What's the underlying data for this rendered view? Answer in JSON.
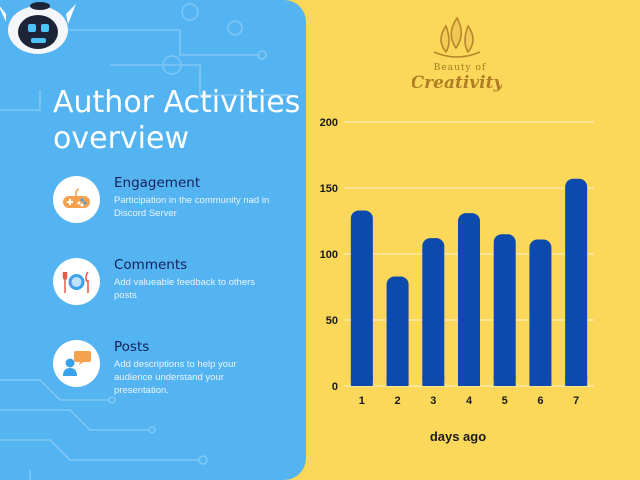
{
  "panel": {
    "title_line1": "Author Activities",
    "title_line2": "overview",
    "items": [
      {
        "icon": "gamepad-icon",
        "title": "Engagement",
        "desc": "Participation in the community nad in Discord Server"
      },
      {
        "icon": "utensils-icon",
        "title": "Comments",
        "desc": "Add valueable feedback to others posts"
      },
      {
        "icon": "chat-user-icon",
        "title": "Posts",
        "desc": "Add descriptions to help your audience understand your presentation."
      }
    ]
  },
  "logo": {
    "line1": "Beauty of",
    "line2": "Creativity"
  },
  "colors": {
    "panel": "#54b4f1",
    "background": "#fbd85a",
    "bar": "#0c4aad",
    "icon_orange": "#f5a14d",
    "icon_blue": "#3aa2ea"
  },
  "chart_data": {
    "type": "bar",
    "categories": [
      "1",
      "2",
      "3",
      "4",
      "5",
      "6",
      "7"
    ],
    "values": [
      133,
      83,
      112,
      131,
      115,
      111,
      157
    ],
    "title": "",
    "xlabel": "days ago",
    "ylabel": "",
    "ylim": [
      0,
      200
    ],
    "yticks": [
      0,
      50,
      100,
      150,
      200
    ],
    "grid": true,
    "legend": "none"
  }
}
